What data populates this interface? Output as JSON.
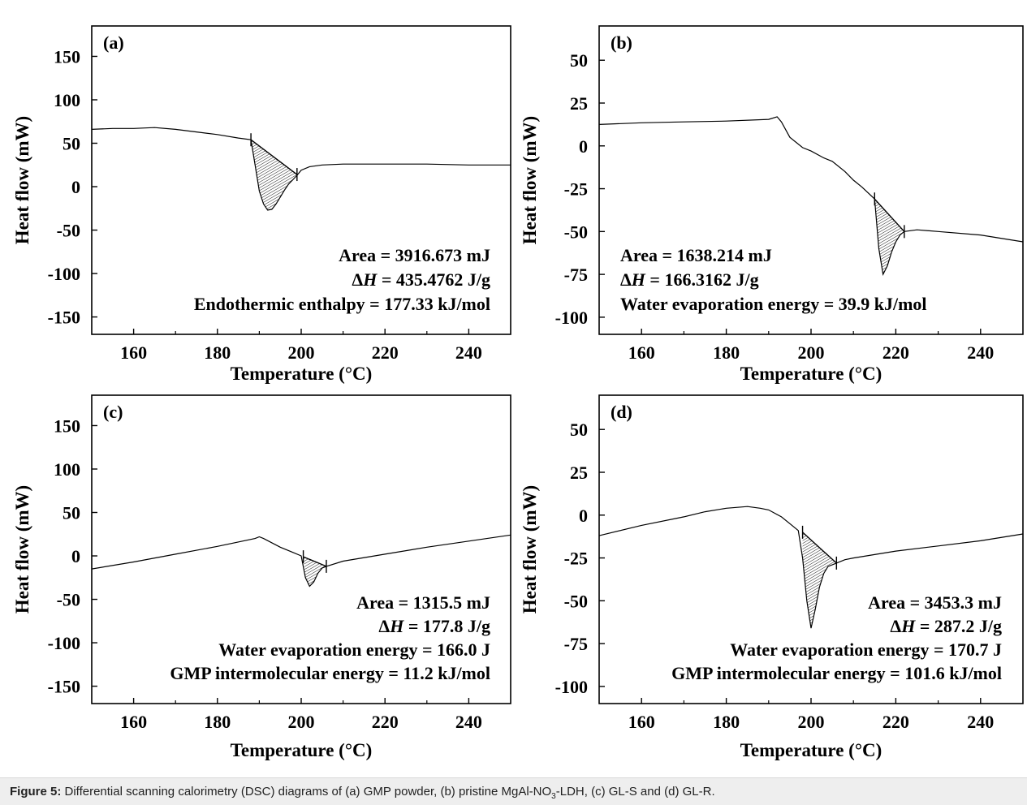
{
  "caption": {
    "label": "Figure 5:",
    "text_before": "Differential scanning calorimetry (DSC) diagrams of (a) GMP powder, (b) pristine MgAl-NO",
    "subscript": "3",
    "text_after": "-LDH, (c) GL-S and (d) GL-R."
  },
  "colors": {
    "line": "#000000",
    "caption_bg": "#eeeeee",
    "hatch": "#000000"
  },
  "chart_data": [
    {
      "type": "line",
      "panel_label": "(a)",
      "xlabel": "Temperature (°C)",
      "ylabel": "Heat flow (mW)",
      "xlim": [
        150,
        250
      ],
      "ylim": [
        -170,
        185
      ],
      "xticks": [
        160,
        180,
        200,
        220,
        240
      ],
      "xtick_labels": [
        "160",
        "180",
        "200",
        "220",
        "240"
      ],
      "yticks": [
        150,
        100,
        50,
        0,
        -50,
        -100,
        -150
      ],
      "ytick_labels": [
        "150",
        "100",
        "50",
        "0",
        "-50",
        "-100",
        "-150"
      ],
      "series": [
        {
          "x": [
            150,
            155,
            160,
            165,
            170,
            175,
            180,
            185,
            188,
            189,
            190,
            191,
            192,
            193,
            194,
            195,
            196,
            197,
            198,
            199,
            200,
            202,
            205,
            210,
            220,
            230,
            240,
            250
          ],
          "y": [
            66,
            67,
            67,
            68,
            66,
            63,
            60,
            56,
            54,
            25,
            -5,
            -20,
            -27,
            -26,
            -20,
            -12,
            -4,
            3,
            8,
            13,
            19,
            23,
            25,
            26,
            26,
            26,
            25,
            25
          ]
        }
      ],
      "peak_region": {
        "x_start": 188,
        "x_end": 199,
        "baseline": [
          [
            188,
            54
          ],
          [
            199,
            14
          ]
        ]
      },
      "annotations": [
        "Area = 3916.673 mJ",
        "ΔH = 435.4762 J/g",
        "Endothermic enthalpy = 177.33 kJ/mol"
      ]
    },
    {
      "type": "line",
      "panel_label": "(b)",
      "xlabel": "Temperature (°C)",
      "ylabel": "Heat flow (mW)",
      "xlim": [
        150,
        250
      ],
      "ylim": [
        -110,
        70
      ],
      "xticks": [
        160,
        180,
        200,
        220,
        240
      ],
      "xtick_labels": [
        "160",
        "180",
        "200",
        "220",
        "240"
      ],
      "yticks": [
        50,
        25,
        0,
        -25,
        -50,
        -75,
        -100
      ],
      "ytick_labels": [
        "50",
        "25",
        "0",
        "-25",
        "-50",
        "-75",
        "-100"
      ],
      "series": [
        {
          "x": [
            150,
            160,
            170,
            180,
            190,
            192,
            193,
            195,
            198,
            200,
            203,
            205,
            208,
            210,
            212,
            215,
            216,
            217,
            218,
            219,
            220,
            221,
            222,
            225,
            230,
            240,
            250
          ],
          "y": [
            12.5,
            13.5,
            14,
            14.5,
            15.5,
            17,
            14,
            5,
            -1,
            -3,
            -7,
            -9,
            -15,
            -20,
            -24,
            -31,
            -60,
            -75,
            -70,
            -62,
            -56,
            -52,
            -50,
            -49,
            -50,
            -52,
            -56
          ]
        }
      ],
      "peak_region": {
        "x_start": 215,
        "x_end": 222,
        "baseline": [
          [
            215,
            -31
          ],
          [
            222,
            -50
          ]
        ]
      },
      "annotations": [
        "Area = 1638.214 mJ",
        "ΔH = 166.3162 J/g",
        "Water evaporation energy = 39.9 kJ/mol"
      ]
    },
    {
      "type": "line",
      "panel_label": "(c)",
      "xlabel": "Temperature (°C)",
      "ylabel": "Heat flow (mW)",
      "xlim": [
        150,
        250
      ],
      "ylim": [
        -170,
        185
      ],
      "xticks": [
        160,
        180,
        200,
        220,
        240
      ],
      "xtick_labels": [
        "160",
        "180",
        "200",
        "220",
        "240"
      ],
      "yticks": [
        150,
        100,
        50,
        0,
        -50,
        -100,
        -150
      ],
      "ytick_labels": [
        "150",
        "100",
        "50",
        "0",
        "-50",
        "-100",
        "-150"
      ],
      "series": [
        {
          "x": [
            150,
            160,
            170,
            180,
            189,
            190,
            191,
            195,
            198,
            200,
            201,
            202,
            203,
            204,
            205,
            206,
            210,
            220,
            230,
            240,
            250
          ],
          "y": [
            -15,
            -7,
            2,
            11,
            20,
            22,
            20,
            10,
            4,
            0,
            -25,
            -35,
            -30,
            -20,
            -14,
            -12,
            -6,
            2,
            10,
            17,
            24
          ]
        }
      ],
      "peak_region": {
        "x_start": 200.5,
        "x_end": 206,
        "baseline": [
          [
            200.5,
            -1
          ],
          [
            206,
            -12
          ]
        ]
      },
      "annotations": [
        "Area = 1315.5 mJ",
        "ΔH = 177.8 J/g",
        "Water evaporation energy = 166.0 J",
        "GMP intermolecular energy = 11.2 kJ/mol"
      ]
    },
    {
      "type": "line",
      "panel_label": "(d)",
      "xlabel": "Temperature (°C)",
      "ylabel": "Heat flow (mW)",
      "xlim": [
        150,
        250
      ],
      "ylim": [
        -110,
        70
      ],
      "xticks": [
        160,
        180,
        200,
        220,
        240
      ],
      "xtick_labels": [
        "160",
        "180",
        "200",
        "220",
        "240"
      ],
      "yticks": [
        50,
        25,
        0,
        -25,
        -50,
        -75,
        -100
      ],
      "ytick_labels": [
        "50",
        "25",
        "0",
        "-25",
        "-50",
        "-75",
        "-100"
      ],
      "series": [
        {
          "x": [
            150,
            160,
            170,
            175,
            180,
            185,
            188,
            190,
            193,
            195,
            197,
            198,
            199,
            200,
            201,
            202,
            203,
            204,
            206,
            208,
            210,
            220,
            230,
            240,
            250
          ],
          "y": [
            -12,
            -6,
            -1,
            2,
            4,
            5,
            4,
            3,
            -1,
            -5,
            -9,
            -25,
            -50,
            -66,
            -55,
            -42,
            -34,
            -30,
            -28,
            -26,
            -25,
            -21,
            -18,
            -15,
            -11
          ]
        }
      ],
      "peak_region": {
        "x_start": 198,
        "x_end": 206,
        "baseline": [
          [
            198,
            -10
          ],
          [
            206,
            -28
          ]
        ]
      },
      "annotations": [
        "Area = 3453.3 mJ",
        "ΔH = 287.2 J/g",
        "Water evaporation energy = 170.7 J",
        "GMP intermolecular energy = 101.6 kJ/mol"
      ]
    }
  ]
}
